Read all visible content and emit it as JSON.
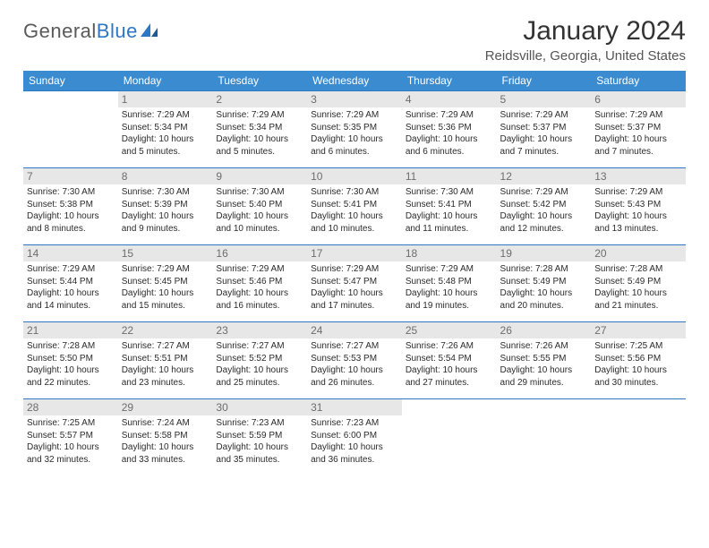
{
  "brand": {
    "part1": "General",
    "part2": "Blue"
  },
  "title": "January 2024",
  "location": "Reidsville, Georgia, United States",
  "weekdays": [
    "Sunday",
    "Monday",
    "Tuesday",
    "Wednesday",
    "Thursday",
    "Friday",
    "Saturday"
  ],
  "colors": {
    "header_bg": "#3a8bd0",
    "header_fg": "#ffffff",
    "cell_border": "#2d78c4",
    "daynum_bg": "#e7e7e7",
    "daynum_fg": "#6d6d6d",
    "text": "#2b2b2b"
  },
  "typography": {
    "title_fontsize": 30,
    "location_fontsize": 15,
    "weekday_fontsize": 12,
    "daynum_fontsize": 12,
    "body_fontsize": 10
  },
  "layout": {
    "columns": 7,
    "rows": 5
  },
  "grid": [
    [
      null,
      {
        "n": "1",
        "sr": "7:29 AM",
        "ss": "5:34 PM",
        "dl": "10 hours and 5 minutes."
      },
      {
        "n": "2",
        "sr": "7:29 AM",
        "ss": "5:34 PM",
        "dl": "10 hours and 5 minutes."
      },
      {
        "n": "3",
        "sr": "7:29 AM",
        "ss": "5:35 PM",
        "dl": "10 hours and 6 minutes."
      },
      {
        "n": "4",
        "sr": "7:29 AM",
        "ss": "5:36 PM",
        "dl": "10 hours and 6 minutes."
      },
      {
        "n": "5",
        "sr": "7:29 AM",
        "ss": "5:37 PM",
        "dl": "10 hours and 7 minutes."
      },
      {
        "n": "6",
        "sr": "7:29 AM",
        "ss": "5:37 PM",
        "dl": "10 hours and 7 minutes."
      }
    ],
    [
      {
        "n": "7",
        "sr": "7:30 AM",
        "ss": "5:38 PM",
        "dl": "10 hours and 8 minutes."
      },
      {
        "n": "8",
        "sr": "7:30 AM",
        "ss": "5:39 PM",
        "dl": "10 hours and 9 minutes."
      },
      {
        "n": "9",
        "sr": "7:30 AM",
        "ss": "5:40 PM",
        "dl": "10 hours and 10 minutes."
      },
      {
        "n": "10",
        "sr": "7:30 AM",
        "ss": "5:41 PM",
        "dl": "10 hours and 10 minutes."
      },
      {
        "n": "11",
        "sr": "7:30 AM",
        "ss": "5:41 PM",
        "dl": "10 hours and 11 minutes."
      },
      {
        "n": "12",
        "sr": "7:29 AM",
        "ss": "5:42 PM",
        "dl": "10 hours and 12 minutes."
      },
      {
        "n": "13",
        "sr": "7:29 AM",
        "ss": "5:43 PM",
        "dl": "10 hours and 13 minutes."
      }
    ],
    [
      {
        "n": "14",
        "sr": "7:29 AM",
        "ss": "5:44 PM",
        "dl": "10 hours and 14 minutes."
      },
      {
        "n": "15",
        "sr": "7:29 AM",
        "ss": "5:45 PM",
        "dl": "10 hours and 15 minutes."
      },
      {
        "n": "16",
        "sr": "7:29 AM",
        "ss": "5:46 PM",
        "dl": "10 hours and 16 minutes."
      },
      {
        "n": "17",
        "sr": "7:29 AM",
        "ss": "5:47 PM",
        "dl": "10 hours and 17 minutes."
      },
      {
        "n": "18",
        "sr": "7:29 AM",
        "ss": "5:48 PM",
        "dl": "10 hours and 19 minutes."
      },
      {
        "n": "19",
        "sr": "7:28 AM",
        "ss": "5:49 PM",
        "dl": "10 hours and 20 minutes."
      },
      {
        "n": "20",
        "sr": "7:28 AM",
        "ss": "5:49 PM",
        "dl": "10 hours and 21 minutes."
      }
    ],
    [
      {
        "n": "21",
        "sr": "7:28 AM",
        "ss": "5:50 PM",
        "dl": "10 hours and 22 minutes."
      },
      {
        "n": "22",
        "sr": "7:27 AM",
        "ss": "5:51 PM",
        "dl": "10 hours and 23 minutes."
      },
      {
        "n": "23",
        "sr": "7:27 AM",
        "ss": "5:52 PM",
        "dl": "10 hours and 25 minutes."
      },
      {
        "n": "24",
        "sr": "7:27 AM",
        "ss": "5:53 PM",
        "dl": "10 hours and 26 minutes."
      },
      {
        "n": "25",
        "sr": "7:26 AM",
        "ss": "5:54 PM",
        "dl": "10 hours and 27 minutes."
      },
      {
        "n": "26",
        "sr": "7:26 AM",
        "ss": "5:55 PM",
        "dl": "10 hours and 29 minutes."
      },
      {
        "n": "27",
        "sr": "7:25 AM",
        "ss": "5:56 PM",
        "dl": "10 hours and 30 minutes."
      }
    ],
    [
      {
        "n": "28",
        "sr": "7:25 AM",
        "ss": "5:57 PM",
        "dl": "10 hours and 32 minutes."
      },
      {
        "n": "29",
        "sr": "7:24 AM",
        "ss": "5:58 PM",
        "dl": "10 hours and 33 minutes."
      },
      {
        "n": "30",
        "sr": "7:23 AM",
        "ss": "5:59 PM",
        "dl": "10 hours and 35 minutes."
      },
      {
        "n": "31",
        "sr": "7:23 AM",
        "ss": "6:00 PM",
        "dl": "10 hours and 36 minutes."
      },
      null,
      null,
      null
    ]
  ],
  "labels": {
    "sunrise": "Sunrise:",
    "sunset": "Sunset:",
    "daylight": "Daylight:"
  }
}
